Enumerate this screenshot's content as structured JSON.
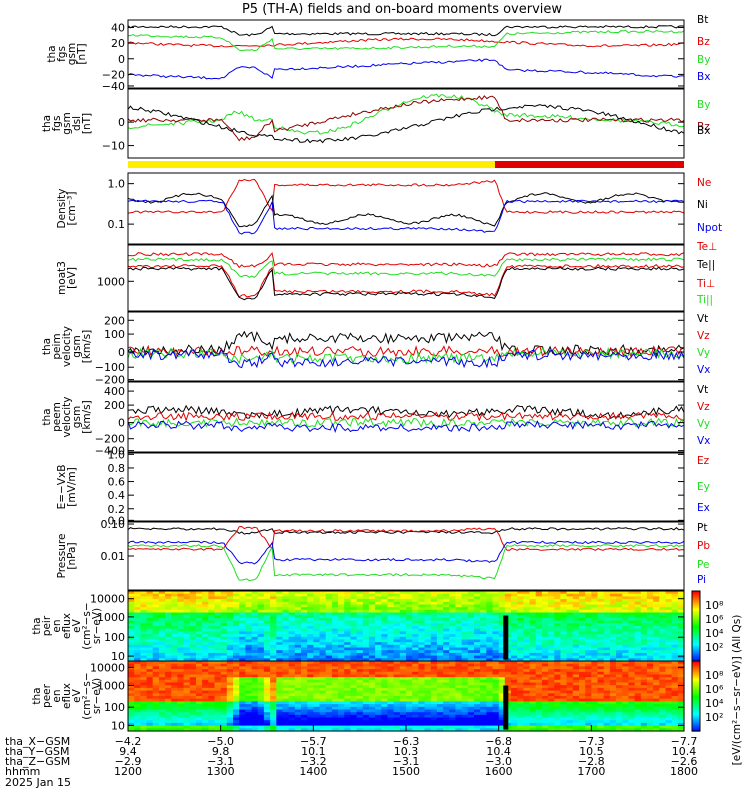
{
  "title": "P5 (TH-A) fields and on-board moments overview",
  "colors": {
    "black": "#000000",
    "red": "#e00000",
    "green": "#22dd22",
    "blue": "#0000ee",
    "darkred": "#8b0000",
    "yellow": "#ffee00"
  },
  "chart_data": [
    {
      "type": "line",
      "ylabel": [
        "tha",
        "fgs",
        "gsm",
        "[nT]"
      ],
      "yticks": [
        "40",
        "20",
        "0",
        "−20",
        "−40"
      ],
      "ylim": [
        -45,
        45
      ],
      "series": [
        {
          "name": "Bt",
          "color": "black"
        },
        {
          "name": "Bz",
          "color": "red"
        },
        {
          "name": "By",
          "color": "green"
        },
        {
          "name": "Bx",
          "color": "blue"
        }
      ]
    },
    {
      "type": "line",
      "ylabel": [
        "tha",
        "fgs",
        "gsm",
        "dsl",
        "[nT]"
      ],
      "yticks": [
        "0",
        "−10"
      ],
      "ylim": [
        -16,
        6
      ],
      "series": [
        {
          "name": "By",
          "color": "green"
        },
        {
          "name": "Bz",
          "color": "darkred"
        },
        {
          "name": "Bx",
          "color": "black"
        }
      ]
    },
    {
      "type": "line",
      "ylabel": [
        "Density",
        "[cm⁻³]"
      ],
      "yticks": [
        "1.0",
        "0.1"
      ],
      "log": true,
      "series": [
        {
          "name": "Ne",
          "color": "red"
        },
        {
          "name": "Ni",
          "color": "black"
        },
        {
          "name": "Npot",
          "color": "blue"
        }
      ]
    },
    {
      "type": "line",
      "ylabel": [
        "moat3",
        "[eV]"
      ],
      "yticks": [
        "1000"
      ],
      "log": true,
      "series": [
        {
          "name": "Te⊥",
          "color": "red"
        },
        {
          "name": "Te||",
          "color": "black"
        },
        {
          "name": "Ti⊥",
          "color": "red"
        },
        {
          "name": "Ti||",
          "color": "green"
        }
      ]
    },
    {
      "type": "line",
      "ylabel": [
        "tha",
        "peim",
        "velocity",
        "gsm",
        "[km/s]"
      ],
      "yticks": [
        "200",
        "100",
        "0",
        "−100",
        "−200"
      ],
      "ylim": [
        -200,
        280
      ],
      "series": [
        {
          "name": "Vt",
          "color": "black"
        },
        {
          "name": "Vz",
          "color": "red"
        },
        {
          "name": "Vy",
          "color": "green"
        },
        {
          "name": "Vx",
          "color": "blue"
        }
      ]
    },
    {
      "type": "line",
      "ylabel": [
        "tha",
        "peem",
        "velocity",
        "gsm",
        "[km/s]"
      ],
      "yticks": [
        "400",
        "200",
        "0",
        "−200",
        "−400"
      ],
      "ylim": [
        -500,
        500
      ],
      "series": [
        {
          "name": "Vt",
          "color": "black"
        },
        {
          "name": "Vz",
          "color": "red"
        },
        {
          "name": "Vy",
          "color": "green"
        },
        {
          "name": "Vx",
          "color": "blue"
        }
      ]
    },
    {
      "type": "line",
      "ylabel": [
        "E=−VxB",
        "[mV/m]"
      ],
      "yticks": [
        "1.0",
        "0.8",
        "0.6",
        "0.4",
        "0.2",
        "0.0"
      ],
      "ylim": [
        0,
        1
      ],
      "series": [
        {
          "name": "Ez",
          "color": "red"
        },
        {
          "name": "Ey",
          "color": "green"
        },
        {
          "name": "Ex",
          "color": "blue"
        }
      ]
    },
    {
      "type": "line",
      "ylabel": [
        "Pressure",
        "[nPa]"
      ],
      "yticks": [
        "0.10",
        "0.01"
      ],
      "log": true,
      "series": [
        {
          "name": "Pt",
          "color": "black"
        },
        {
          "name": "Pb",
          "color": "red"
        },
        {
          "name": "Pe",
          "color": "green"
        },
        {
          "name": "Pi",
          "color": "blue"
        }
      ]
    },
    {
      "type": "heatmap",
      "ylabel": [
        "tha",
        "peir",
        "en",
        "eflux",
        "eV",
        "(cm²−s−",
        "sr−eV)"
      ],
      "yticks": [
        "10000",
        "1000",
        "100",
        "10"
      ]
    },
    {
      "type": "heatmap",
      "ylabel": [
        "tha",
        "peer",
        "en",
        "eflux",
        "eV",
        "(cm²−s−",
        "sr−eV)"
      ],
      "yticks": [
        "10000",
        "1000",
        "100",
        "10"
      ]
    }
  ],
  "colorbar": {
    "label": "[eV/(cm²−s−sr−eV)] (All Qs)",
    "ticks": [
      "10⁸",
      "10⁶",
      "10⁴",
      "10²",
      "10⁸",
      "10⁶",
      "10⁴",
      "10²"
    ]
  },
  "xaxis": {
    "row_labels": [
      "tha_X−GSM",
      "tha_Y−GSM",
      "tha_Z−GSM",
      "hhmm",
      "2025 Jan 15"
    ],
    "x_gsm": [
      "−4.2",
      "−5.0",
      "−5.7",
      "−6.3",
      "−6.8",
      "−7.3",
      "−7.7"
    ],
    "y_gsm": [
      "9.4",
      "9.8",
      "10.1",
      "10.3",
      "10.4",
      "10.5",
      "10.4"
    ],
    "z_gsm": [
      "−2.9",
      "−3.1",
      "−3.2",
      "−3.1",
      "−3.0",
      "−2.8",
      "−2.6"
    ],
    "hhmm": [
      "1200",
      "1300",
      "1400",
      "1500",
      "1600",
      "1700",
      "1800"
    ]
  }
}
